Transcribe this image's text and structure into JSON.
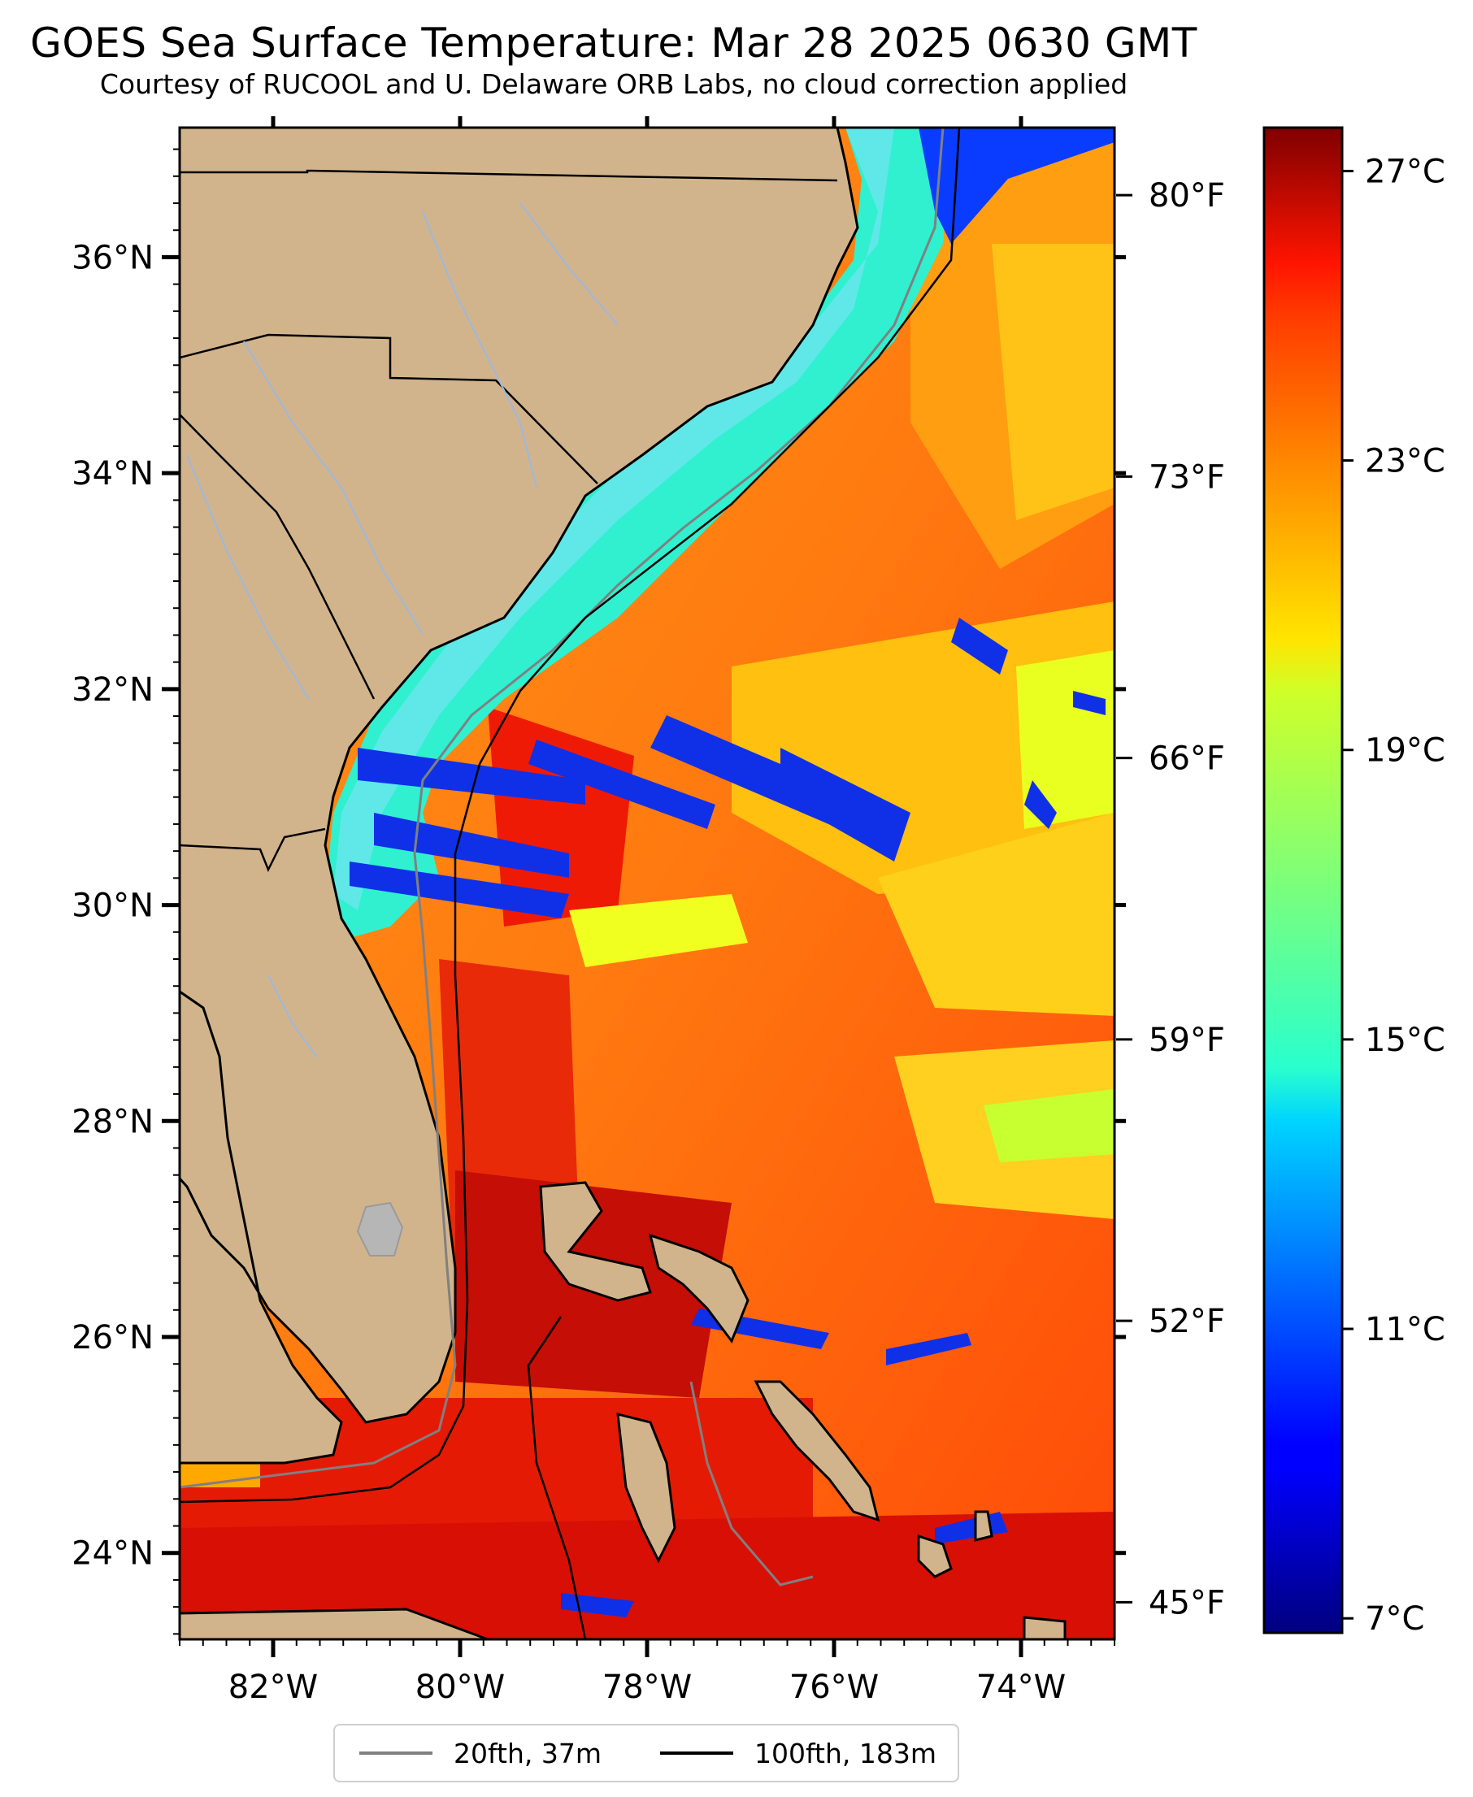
{
  "header": {
    "title": "GOES Sea Surface Temperature: Mar 28 2025 0630 GMT",
    "subtitle": "Courtesy of RUCOOL and U. Delaware ORB Labs, no cloud correction applied"
  },
  "map": {
    "lon_range": [
      -83,
      -73
    ],
    "lat_range": [
      23.2,
      37.2
    ],
    "lat_ticks": [
      {
        "value": 36,
        "label": "36°N"
      },
      {
        "value": 34,
        "label": "34°N"
      },
      {
        "value": 32,
        "label": "32°N"
      },
      {
        "value": 30,
        "label": "30°N"
      },
      {
        "value": 28,
        "label": "28°N"
      },
      {
        "value": 26,
        "label": "26°N"
      },
      {
        "value": 24,
        "label": "24°N"
      }
    ],
    "lon_ticks": [
      {
        "value": -82,
        "label": "82°W"
      },
      {
        "value": -80,
        "label": "80°W"
      },
      {
        "value": -78,
        "label": "78°W"
      },
      {
        "value": -76,
        "label": "76°W"
      },
      {
        "value": -74,
        "label": "74°W"
      }
    ],
    "fahrenheit_ticks": [
      {
        "value": 80,
        "label": "80°F"
      },
      {
        "value": 73,
        "label": "73°F"
      },
      {
        "value": 66,
        "label": "66°F"
      },
      {
        "value": 59,
        "label": "59°F"
      },
      {
        "value": 52,
        "label": "52°F"
      },
      {
        "value": 45,
        "label": "45°F"
      }
    ],
    "colors": {
      "land": "#d2b48c",
      "coast": "#000000",
      "rivers": "#9cb8e0",
      "shelf_20fth": "#808080",
      "shelf_100fth": "#000000"
    }
  },
  "colorbar": {
    "range_c": [
      6.8,
      27.6
    ],
    "colormap": "jet",
    "celsius_ticks": [
      {
        "value": 27,
        "label": "27°C"
      },
      {
        "value": 23,
        "label": "23°C"
      },
      {
        "value": 19,
        "label": "19°C"
      },
      {
        "value": 15,
        "label": "15°C"
      },
      {
        "value": 11,
        "label": "11°C"
      },
      {
        "value": 7,
        "label": "7°C"
      }
    ]
  },
  "legend": {
    "items": [
      {
        "label": "20fth, 37m",
        "color": "#808080"
      },
      {
        "label": "100fth, 183m",
        "color": "#000000"
      }
    ]
  }
}
